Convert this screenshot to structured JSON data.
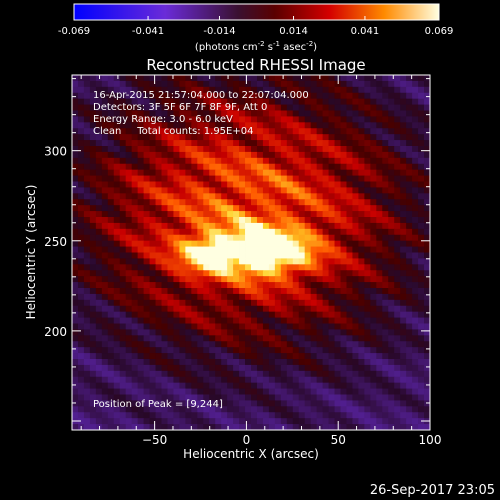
{
  "chart_data": {
    "type": "heatmap",
    "title": "Reconstructed RHESSI Image",
    "xlabel": "Heliocentric X (arcsec)",
    "ylabel": "Heliocentric Y (arcsec)",
    "xlim": [
      -95,
      100
    ],
    "ylim": [
      145,
      342
    ],
    "xticks": [
      -50,
      0,
      50,
      100
    ],
    "yticks": [
      200,
      250,
      300
    ],
    "grid": false,
    "colorbar": {
      "position": "top",
      "ticks": [
        "-0.069",
        "-0.041",
        "-0.014",
        "0.014",
        "0.041",
        "0.069"
      ],
      "min": -0.069,
      "max": 0.069,
      "unit_base": "(photons cm",
      "unit_exp1": "-2",
      "unit_mid": " s",
      "unit_exp2": "-1",
      "unit_mid2": " asec",
      "unit_exp3": "-2",
      "unit_end": ")"
    },
    "annotations": {
      "time": "16-Apr-2015 21:57:04.000 to 22:07:04.000",
      "detectors": "Detectors: 3F 5F 6F 7F 8F 9F, Att 0",
      "energy": "Energy Range: 3.0 - 6.0 keV",
      "method": "Clean     Total counts: 1.95E+04",
      "peak": "Position of Peak = [9,244]"
    },
    "peak": [
      9,
      244
    ],
    "source_sigma_arcsec": [
      18,
      9
    ],
    "source_peak_value": 0.069,
    "stripe_angle_deg": 55,
    "footer": "26-Sep-2017 23:05"
  }
}
